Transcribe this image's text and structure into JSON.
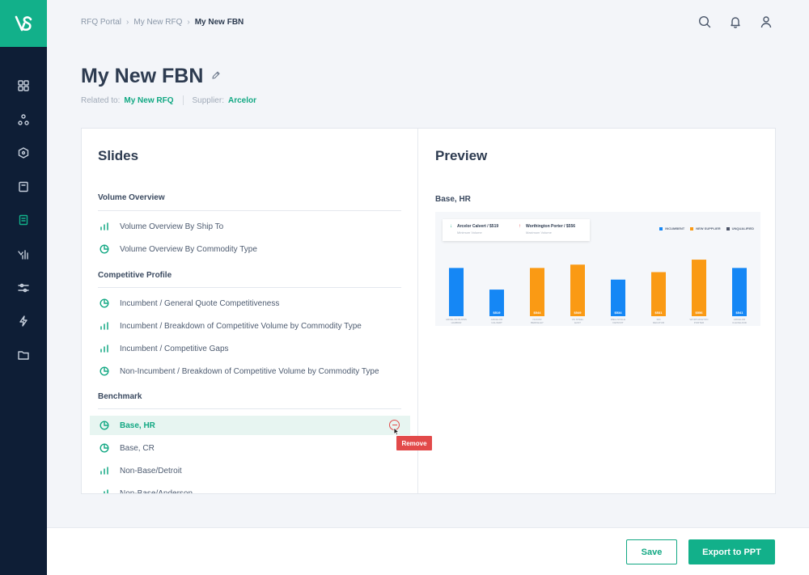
{
  "colors": {
    "brand": "#12b08a",
    "sidebar": "#0e1e36",
    "accent_text": "#12a883",
    "danger": "#e24a4a",
    "incumbent": "#1587f5",
    "new_supplier": "#fa9a14",
    "unqualified": "#4d5468"
  },
  "sidebar": {
    "logo_icon": "brand-logo-icon",
    "items": [
      {
        "icon": "dashboard-grid-icon"
      },
      {
        "icon": "network-icon"
      },
      {
        "icon": "hexagon-icon"
      },
      {
        "icon": "document-icon"
      },
      {
        "icon": "report-icon",
        "active": true
      },
      {
        "icon": "analytics-icon"
      },
      {
        "icon": "sliders-icon"
      },
      {
        "icon": "lightning-icon"
      },
      {
        "icon": "folder-icon"
      }
    ]
  },
  "header": {
    "breadcrumb": [
      "RFQ Portal",
      "My New RFQ",
      "My New FBN"
    ],
    "icons": [
      "search-icon",
      "bell-icon",
      "user-icon"
    ]
  },
  "page": {
    "title": "My New FBN",
    "related_label": "Related to:",
    "related_value": "My New RFQ",
    "supplier_label": "Supplier:",
    "supplier_value": "Arcelor"
  },
  "slides": {
    "title": "Slides",
    "sections": [
      {
        "title": "Volume Overview",
        "items": [
          {
            "label": "Volume Overview By Ship To",
            "icon": "bar-chart-icon"
          },
          {
            "label": "Volume Overview By Commodity Type",
            "icon": "pie-chart-icon"
          }
        ]
      },
      {
        "title": "Competitive Profile",
        "items": [
          {
            "label": "Incumbent / General Quote Competitiveness",
            "icon": "pie-chart-icon"
          },
          {
            "label": "Incumbent / Breakdown of Competitive Volume by Commodity Type",
            "icon": "bar-chart-icon"
          },
          {
            "label": "Incumbent / Competitive Gaps",
            "icon": "bar-chart-icon"
          },
          {
            "label": "Non-Incumbent / Breakdown of Competitive Volume by Commodity Type",
            "icon": "pie-chart-icon"
          }
        ]
      },
      {
        "title": "Benchmark",
        "items": [
          {
            "label": "Base, HR",
            "icon": "pie-chart-icon",
            "selected": true
          },
          {
            "label": "Base, CR",
            "icon": "pie-chart-icon"
          },
          {
            "label": "Non-Base/Detroit",
            "icon": "bar-chart-icon"
          },
          {
            "label": "Non-Base/Anderson",
            "icon": "bar-chart-icon"
          }
        ]
      }
    ],
    "remove_tooltip": "Remove"
  },
  "preview": {
    "title": "Preview",
    "slide_name": "Base, HR",
    "stat_cards": [
      {
        "name": "Arcelor Calvert / $519",
        "sub": "Minimum Volume",
        "arrow": "↓"
      },
      {
        "name": "Worthington Porter / $556",
        "sub": "Maximum Volume",
        "arrow": "↑"
      }
    ],
    "legend": [
      "INCUMBENT",
      "NEW SUPPLIER",
      "UNQUALIFIED"
    ]
  },
  "chart_data": {
    "type": "bar",
    "categories": [
      "ARCELOR BURNS HARBOR",
      "ARCELOR CALVERT",
      "NUCOR BERKELEY",
      "US STEEL EAST",
      "WELLSVILLE DETROIT",
      "SDI DECATUR",
      "WORTHINGTON PORTER",
      "ARCELOR CLEVELAND"
    ],
    "series": [
      {
        "name": "INCUMBENT",
        "values": [
          58,
          32,
          null,
          null,
          44,
          null,
          null,
          58
        ]
      },
      {
        "name": "NEW SUPPLIER",
        "values": [
          null,
          null,
          58,
          62,
          null,
          53,
          68,
          null
        ]
      }
    ],
    "data_labels": [
      "",
      "$519",
      "$544",
      "$549",
      "$534",
      "$531",
      "$556",
      "$541"
    ],
    "ylim": [
      0,
      70
    ],
    "grid": false,
    "legend_position": "top-right"
  },
  "footer": {
    "save_label": "Save",
    "export_label": "Export to PPT"
  }
}
